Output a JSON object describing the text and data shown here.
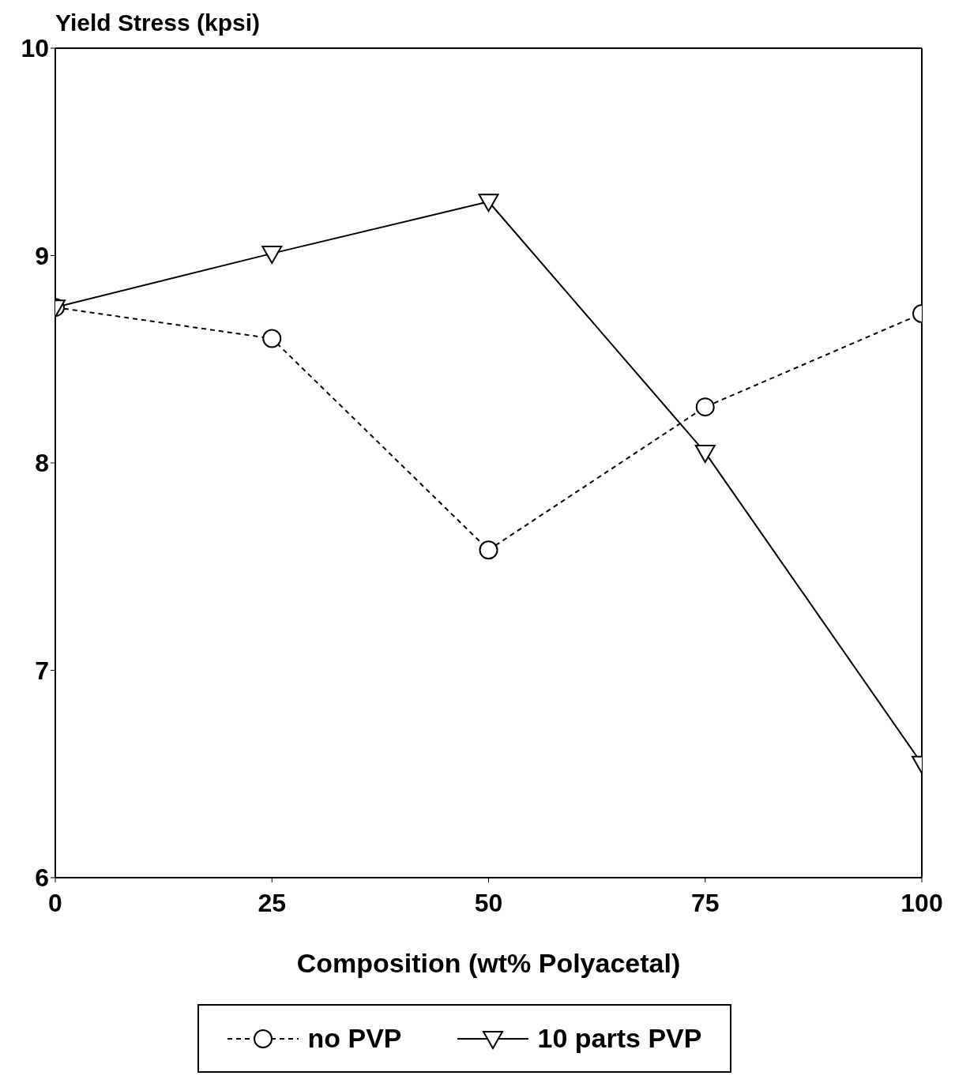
{
  "chart_data": {
    "type": "line",
    "ylabel": "Yield Stress (kpsi)",
    "xlabel": "Composition (wt% Polyacetal)",
    "x": [
      0,
      25,
      50,
      75,
      100
    ],
    "series": [
      {
        "name": "no PVP",
        "color": "#000000",
        "values": [
          8.75,
          8.6,
          7.58,
          8.27,
          8.72
        ],
        "marker": "circle",
        "line_style": "dashed"
      },
      {
        "name": "10 parts PVP",
        "color": "#000000",
        "values": [
          8.75,
          9.01,
          9.26,
          8.05,
          6.55
        ],
        "marker": "triangle",
        "line_style": "solid"
      }
    ],
    "xlim": [
      0,
      100
    ],
    "xticks": [
      0,
      25,
      50,
      75,
      100
    ],
    "ylim": [
      6,
      10
    ],
    "yticks": [
      6,
      7,
      8,
      9,
      10
    ],
    "grid": false,
    "legend": "bottom"
  }
}
